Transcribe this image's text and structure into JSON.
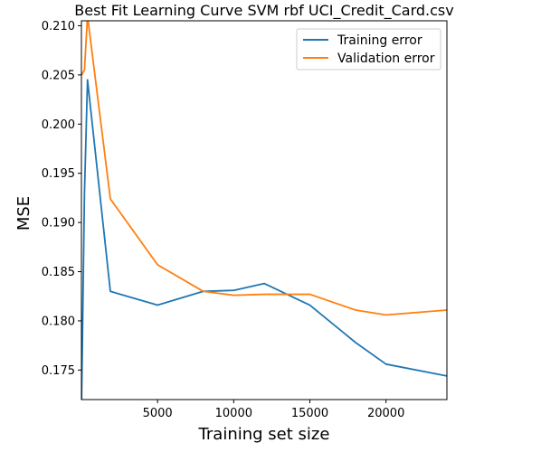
{
  "chart_data": {
    "type": "line",
    "title": "Best Fit Learning Curve SVM rbf UCI_Credit_Card.csv",
    "xlabel": "Training set size",
    "ylabel": "MSE",
    "xlim": [
      0,
      24000
    ],
    "ylim": [
      0.172,
      0.2105
    ],
    "xticks": [
      5000,
      10000,
      15000,
      20000
    ],
    "xtick_labels": [
      "5000",
      "10000",
      "15000",
      "20000"
    ],
    "yticks": [
      0.175,
      0.18,
      0.185,
      0.19,
      0.195,
      0.2,
      0.205,
      0.21
    ],
    "ytick_labels": [
      "0.175",
      "0.180",
      "0.185",
      "0.190",
      "0.195",
      "0.200",
      "0.205",
      "0.210"
    ],
    "grid": false,
    "legend_position": "top-right",
    "series": [
      {
        "name": "Training error",
        "color": "#1f77b4",
        "x": [
          10,
          200,
          400,
          1900,
          5000,
          8000,
          10000,
          12000,
          15000,
          18000,
          20000,
          24000
        ],
        "y": [
          0.172,
          0.193,
          0.2045,
          0.183,
          0.1816,
          0.183,
          0.1831,
          0.1838,
          0.1816,
          0.1778,
          0.1756,
          0.1744
        ]
      },
      {
        "name": "Validation error",
        "color": "#ff7f0e",
        "x": [
          10,
          200,
          400,
          1900,
          5000,
          8000,
          10000,
          12000,
          15000,
          18000,
          20000,
          24000
        ],
        "y": [
          0.205,
          0.2055,
          0.211,
          0.1924,
          0.1857,
          0.183,
          0.1826,
          0.1827,
          0.1827,
          0.1811,
          0.1806,
          0.1811
        ]
      }
    ]
  }
}
